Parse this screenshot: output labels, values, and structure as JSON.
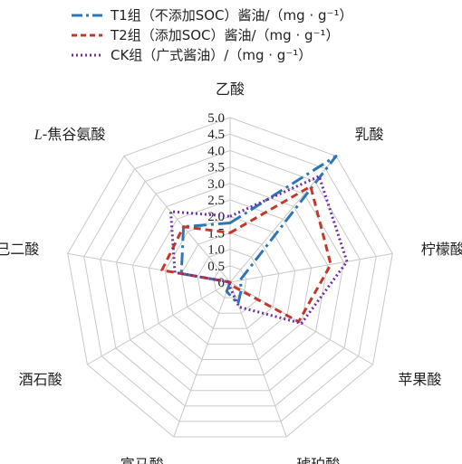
{
  "chart_data": {
    "type": "radar",
    "axes": [
      "乙酸",
      "乳酸",
      "柠檬酸",
      "苹果酸",
      "琥珀酸",
      "富马酸",
      "酒石酸",
      "己二酸",
      "L-焦谷氨酸"
    ],
    "r_ticks": [
      "0",
      "0.5",
      "1.0",
      "1.5",
      "2.0",
      "2.5",
      "3.0",
      "3.5",
      "4.0",
      "4.5",
      "5.0"
    ],
    "rlim": [
      0,
      5
    ],
    "grid": true,
    "legend_position": "top",
    "series": [
      {
        "name": "T1组（不添加SOC）酱油/（mg · g⁻¹）",
        "color": "#2e75b6",
        "style": "dash-dot",
        "values": [
          1.8,
          5.0,
          0.3,
          0.4,
          0.7,
          0.3,
          0.0,
          1.5,
          2.2
        ]
      },
      {
        "name": "T2组（添加SOC）酱油/（mg · g⁻¹）",
        "color": "#c0392b",
        "style": "dashed",
        "values": [
          1.5,
          3.8,
          3.1,
          2.4,
          0.1,
          0.0,
          0.0,
          2.1,
          2.2
        ]
      },
      {
        "name": "CK组（广式酱油）/（mg · g⁻¹）",
        "color": "#7030a0",
        "style": "dotted",
        "values": [
          2.0,
          4.2,
          3.6,
          2.5,
          0.8,
          0.1,
          0.0,
          1.7,
          2.8
        ]
      }
    ]
  },
  "legend": {
    "t1": "T1组（不添加SOC）酱油/（mg · g⁻¹）",
    "t2": "T2组（添加SOC）酱油/（mg · g⁻¹）",
    "ck": "CK组（广式酱油）/（mg · g⁻¹）"
  }
}
